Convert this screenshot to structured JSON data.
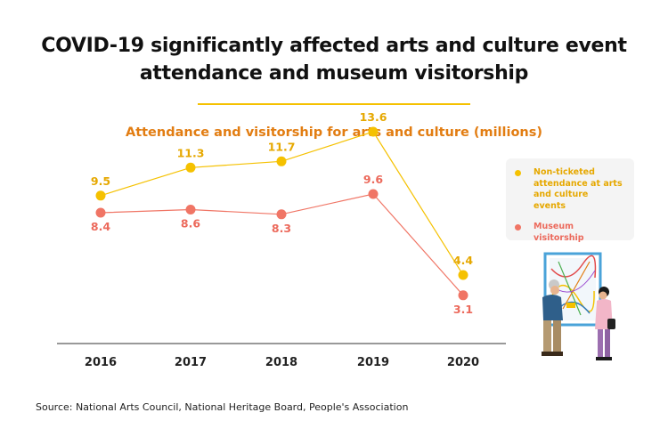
{
  "header": {
    "title_line1": "COVID-19 significantly affected arts and culture event",
    "title_line2": "attendance and museum visitorship"
  },
  "colors": {
    "non_ticketed": "#f5c100",
    "museum": "#f07565",
    "non_ticketed_label": "#e6a800",
    "museum_label": "#ec6a5c",
    "subtitle": "#e27d12",
    "axis": "#333333"
  },
  "chart_data": {
    "type": "line",
    "title": "Attendance and visitorship for arts and culture (millions)",
    "xlabel": "",
    "ylabel": "",
    "categories": [
      "2016",
      "2017",
      "2018",
      "2019",
      "2020"
    ],
    "series": [
      {
        "name": "Non-ticketed attendance at arts and culture events",
        "values": [
          9.5,
          11.3,
          11.7,
          13.6,
          4.4
        ]
      },
      {
        "name": "Museum visitorship",
        "values": [
          8.4,
          8.6,
          8.3,
          9.6,
          3.1
        ]
      }
    ],
    "ylim": [
      0,
      18
    ],
    "grid": false,
    "legend_position": "right"
  },
  "footer": {
    "source": "Source: National Arts Council, National Heritage Board, People's Association"
  },
  "illustration": {
    "icon": "museum-visitors-viewing-painting-icon"
  }
}
